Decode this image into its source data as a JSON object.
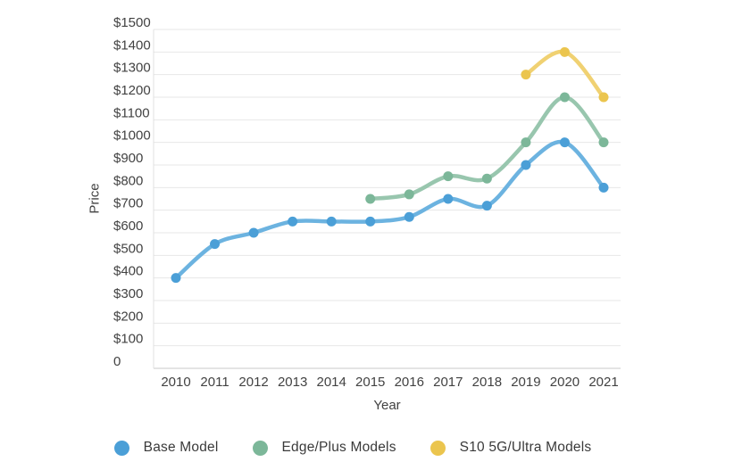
{
  "chart_data": {
    "type": "line",
    "title": "",
    "xlabel": "Year",
    "ylabel": "Price",
    "x": [
      "2010",
      "2011",
      "2012",
      "2013",
      "2014",
      "2015",
      "2016",
      "2017",
      "2018",
      "2019",
      "2020",
      "2021"
    ],
    "ylim": [
      0,
      1500
    ],
    "ytick_step": 100,
    "ytick_labels": [
      "0",
      "$100",
      "$200",
      "$300",
      "$400",
      "$500",
      "$600",
      "$700",
      "$800",
      "$900",
      "$1000",
      "$1100",
      "$1200",
      "$1300",
      "$1400",
      "$1500"
    ],
    "grid": true,
    "legend_position": "bottom",
    "series": [
      {
        "name": "Base Model",
        "point_color": "#4B9FD7",
        "line_color": "#6CB3E0",
        "values": [
          400,
          550,
          600,
          650,
          650,
          650,
          670,
          750,
          720,
          900,
          1000,
          800
        ]
      },
      {
        "name": "Edge/Plus Models",
        "point_color": "#7CB799",
        "line_color": "#98C6AE",
        "values": [
          null,
          null,
          null,
          null,
          null,
          750,
          770,
          850,
          840,
          1000,
          1200,
          1000
        ]
      },
      {
        "name": "S10 5G/Ultra Models",
        "point_color": "#EBC54E",
        "line_color": "#F0D172",
        "values": [
          null,
          null,
          null,
          null,
          null,
          null,
          null,
          null,
          null,
          1300,
          1400,
          1200
        ]
      }
    ]
  },
  "colors": {
    "grid": "#e7e7e7",
    "baseline": "#c9c9c9",
    "axis_line": "#e0e0e0",
    "tick_text": "#424242",
    "legend_text": "#3a3a3a"
  }
}
